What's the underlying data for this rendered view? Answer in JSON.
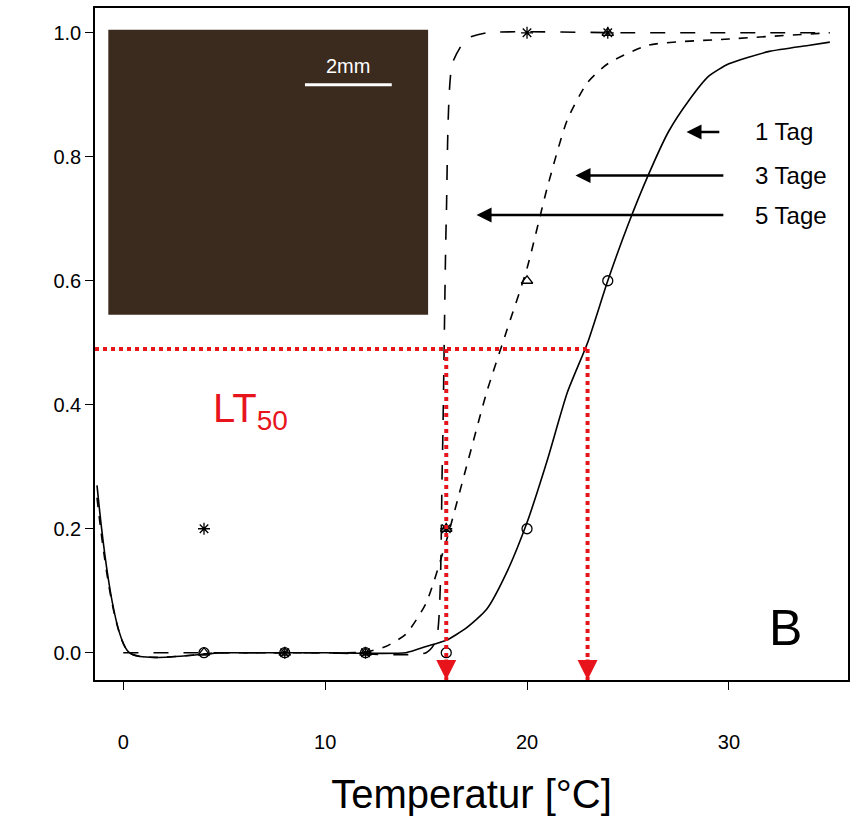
{
  "chart_data": {
    "type": "line",
    "x_label": "Temperatur [°C]",
    "panel": "B",
    "xlim": [
      -1.4,
      35.9
    ],
    "ylim": [
      -0.044,
      1.04
    ],
    "xticks": [
      0,
      10,
      20,
      30
    ],
    "yticks": [
      {
        "value": 0,
        "label": "0.0"
      },
      {
        "value": 0.2,
        "label": "0.2"
      },
      {
        "value": 0.4,
        "label": "0.4"
      },
      {
        "value": 0.6,
        "label": "0.6"
      },
      {
        "value": 0.8,
        "label": "0.8"
      },
      {
        "value": 1,
        "label": "1.0"
      }
    ],
    "grid": false,
    "series": [
      {
        "name": "1 Tag",
        "color": "#000000",
        "marker": "circle",
        "line_style": "solid",
        "points": {
          "x": [
            4,
            8,
            12,
            16,
            20,
            24
          ],
          "values": [
            0,
            0,
            0,
            0,
            0.2,
            0.6
          ]
        },
        "curve": {
          "x": [
            -1.3,
            0.3,
            5,
            10,
            14,
            15,
            16,
            17,
            18,
            19,
            20,
            21,
            22,
            23,
            24,
            25,
            26,
            27,
            28,
            29,
            30,
            32,
            34,
            35
          ],
          "values": [
            0.27,
            0,
            0,
            0,
            0,
            0.01,
            0.02,
            0.04,
            0.07,
            0.13,
            0.21,
            0.31,
            0.42,
            0.5,
            0.6,
            0.69,
            0.77,
            0.84,
            0.89,
            0.93,
            0.95,
            0.97,
            0.98,
            0.985
          ]
        }
      },
      {
        "name": "3 Tage",
        "color": "#000000",
        "marker": "triangle",
        "line_style": "dash",
        "points": {
          "x": [
            4,
            8,
            12,
            16,
            20,
            24
          ],
          "values": [
            0,
            0,
            0,
            0.2,
            0.6,
            1
          ]
        },
        "curve": {
          "x": [
            -1.3,
            0.3,
            5,
            11,
            12,
            13,
            14,
            15,
            16,
            17,
            18,
            19,
            20,
            21,
            22,
            23,
            24,
            26,
            30,
            35
          ],
          "values": [
            0.25,
            0,
            0,
            0,
            0.001,
            0.01,
            0.03,
            0.08,
            0.18,
            0.3,
            0.42,
            0.52,
            0.62,
            0.75,
            0.86,
            0.92,
            0.95,
            0.98,
            0.99,
            1
          ]
        }
      },
      {
        "name": "5 Tage",
        "color": "#000000",
        "marker": "asterisk",
        "line_style": "longdash",
        "points": {
          "x": [
            4,
            8,
            12,
            16,
            20,
            24
          ],
          "values": [
            0.2,
            0,
            0,
            0.2,
            1,
            1
          ]
        },
        "curve": {
          "x": [
            0,
            5,
            10,
            15,
            15.5,
            15.8,
            16,
            16.3,
            17,
            18,
            25,
            35
          ],
          "values": [
            0,
            0,
            0,
            0,
            0.02,
            0.3,
            0.7,
            0.95,
            0.99,
            1,
            1,
            1
          ]
        }
      }
    ],
    "lt50": {
      "text": "LT",
      "subscript": "50",
      "y": 0.49,
      "x": [
        16,
        23
      ]
    },
    "inset": {
      "scale_label": "2mm"
    }
  }
}
